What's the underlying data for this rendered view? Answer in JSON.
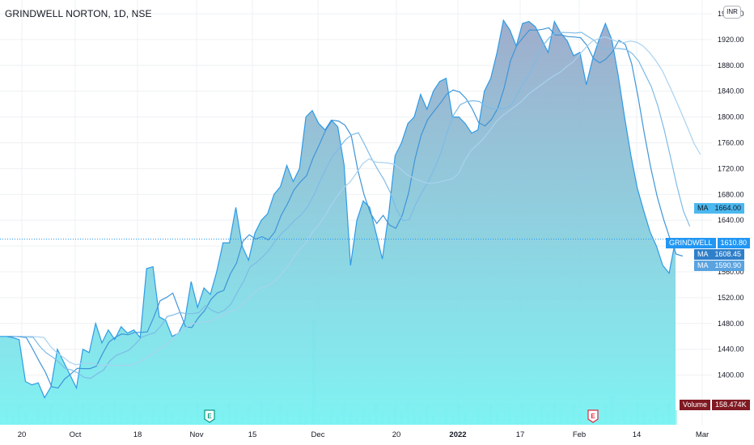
{
  "title": "GRINDWELL NORTON, 1D, NSE",
  "currency_button": "INR",
  "colors": {
    "line": "#2e9be6",
    "fill_top": "#9aa9c9",
    "fill_bottom": "#79f2f2",
    "ma1": "#3f95d8",
    "ma2": "#7ebbe6",
    "ma3": "#a9d2ef",
    "volume": "#76e9ea",
    "volume_badge": "#801922",
    "last_price_badge": "#2196f3",
    "ma_badge": "#3a8fd8"
  },
  "price_axis": {
    "ticks": [
      "1960.00",
      "1920.00",
      "1880.00",
      "1840.00",
      "1800.00",
      "1760.00",
      "1720.00",
      "1680.00",
      "1640.00",
      "1600.00",
      "1560.00",
      "1520.00",
      "1480.00",
      "1440.00",
      "1400.00"
    ]
  },
  "time_axis": {
    "labels": [
      "20",
      "Oct",
      "18",
      "Nov",
      "15",
      "Dec",
      "20",
      "2022",
      "17",
      "Feb",
      "14",
      "Mar"
    ]
  },
  "badges": {
    "ma_top": {
      "label": "MA",
      "value": "1664.00"
    },
    "last": {
      "label": "GRINDWELL",
      "value": "1610.80"
    },
    "ma_mid": {
      "label": "MA",
      "value": "1608.45"
    },
    "ma_low": {
      "label": "MA",
      "value": "1590.90"
    },
    "volume": {
      "label": "Volume",
      "value": "158.474K"
    }
  },
  "event_markers": [
    {
      "letter": "E",
      "kind": "earnings",
      "color": "#089981"
    },
    {
      "letter": "E",
      "kind": "earnings",
      "color": "#e02a3f"
    }
  ],
  "chart_data": {
    "type": "area",
    "title": "GRINDWELL NORTON, 1D, NSE",
    "ylim": [
      1380,
      1970
    ],
    "xlabel": "",
    "ylabel": "",
    "grid": true,
    "series": [
      {
        "name": "GRINDWELL",
        "values": [
          1460,
          1460,
          1458,
          1455,
          1390,
          1385,
          1388,
          1365,
          1382,
          1440,
          1420,
          1400,
          1380,
          1440,
          1435,
          1480,
          1450,
          1470,
          1455,
          1475,
          1465,
          1470,
          1458,
          1565,
          1568,
          1490,
          1485,
          1460,
          1465,
          1485,
          1545,
          1505,
          1535,
          1525,
          1560,
          1605,
          1605,
          1660,
          1600,
          1578,
          1620,
          1640,
          1650,
          1680,
          1692,
          1725,
          1700,
          1720,
          1800,
          1810,
          1790,
          1780,
          1795,
          1785,
          1725,
          1570,
          1640,
          1670,
          1660,
          1620,
          1580,
          1650,
          1740,
          1760,
          1790,
          1800,
          1835,
          1812,
          1840,
          1855,
          1860,
          1800,
          1800,
          1790,
          1775,
          1780,
          1840,
          1860,
          1900,
          1950,
          1935,
          1910,
          1945,
          1948,
          1940,
          1920,
          1900,
          1948,
          1930,
          1918,
          1895,
          1900,
          1850,
          1890,
          1920,
          1945,
          1920,
          1865,
          1800,
          1740,
          1690,
          1655,
          1622,
          1600,
          1570,
          1558,
          1610
        ]
      },
      {
        "name": "MA",
        "values": []
      },
      {
        "name": "MA",
        "values": []
      },
      {
        "name": "MA",
        "values": []
      },
      {
        "name": "Volume",
        "values": []
      }
    ],
    "last_price": 1610.8,
    "ma_values": [
      1664.0,
      1608.45,
      1590.9
    ],
    "volume_last": "158.474K"
  }
}
